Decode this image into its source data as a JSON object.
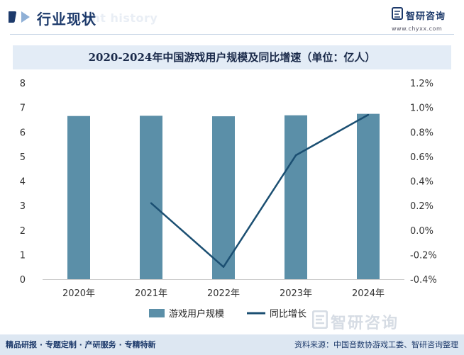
{
  "header": {
    "title": "行业现状",
    "watermark": "ent history",
    "brand_name": "智研咨询",
    "brand_url": "www.chyxx.com"
  },
  "colors": {
    "bar": "#5b8fa8",
    "line": "#1b4f72",
    "axis_text": "#333333"
  },
  "chart_data": {
    "type": "bar",
    "title": "2020-2024年中国游戏用户规模及同比增速（单位：亿人）",
    "categories": [
      "2020年",
      "2021年",
      "2022年",
      "2023年",
      "2024年"
    ],
    "series": [
      {
        "name": "游戏用户规模",
        "type": "bar",
        "axis": "left",
        "values": [
          6.65,
          6.66,
          6.64,
          6.68,
          6.74
        ]
      },
      {
        "name": "同比增长",
        "type": "line",
        "axis": "right",
        "values": [
          null,
          0.22,
          -0.3,
          0.61,
          0.94
        ]
      }
    ],
    "y_left": {
      "min": 0,
      "max": 8,
      "ticks": [
        "0",
        "1",
        "2",
        "3",
        "4",
        "5",
        "6",
        "7",
        "8"
      ]
    },
    "y_right": {
      "min": -0.4,
      "max": 1.2,
      "ticks": [
        "-0.4%",
        "-0.2%",
        "0.0%",
        "0.2%",
        "0.4%",
        "0.6%",
        "0.8%",
        "1.0%",
        "1.2%"
      ]
    },
    "legend": [
      "游戏用户规模",
      "同比增长"
    ],
    "grid": false
  },
  "footer": {
    "left": "精品研报 · 专题定制 · 产研服务 · 专精特新",
    "right": "资料来源：中国音数协游戏工委、智研咨询整理"
  },
  "watermark_big": "智研咨询"
}
